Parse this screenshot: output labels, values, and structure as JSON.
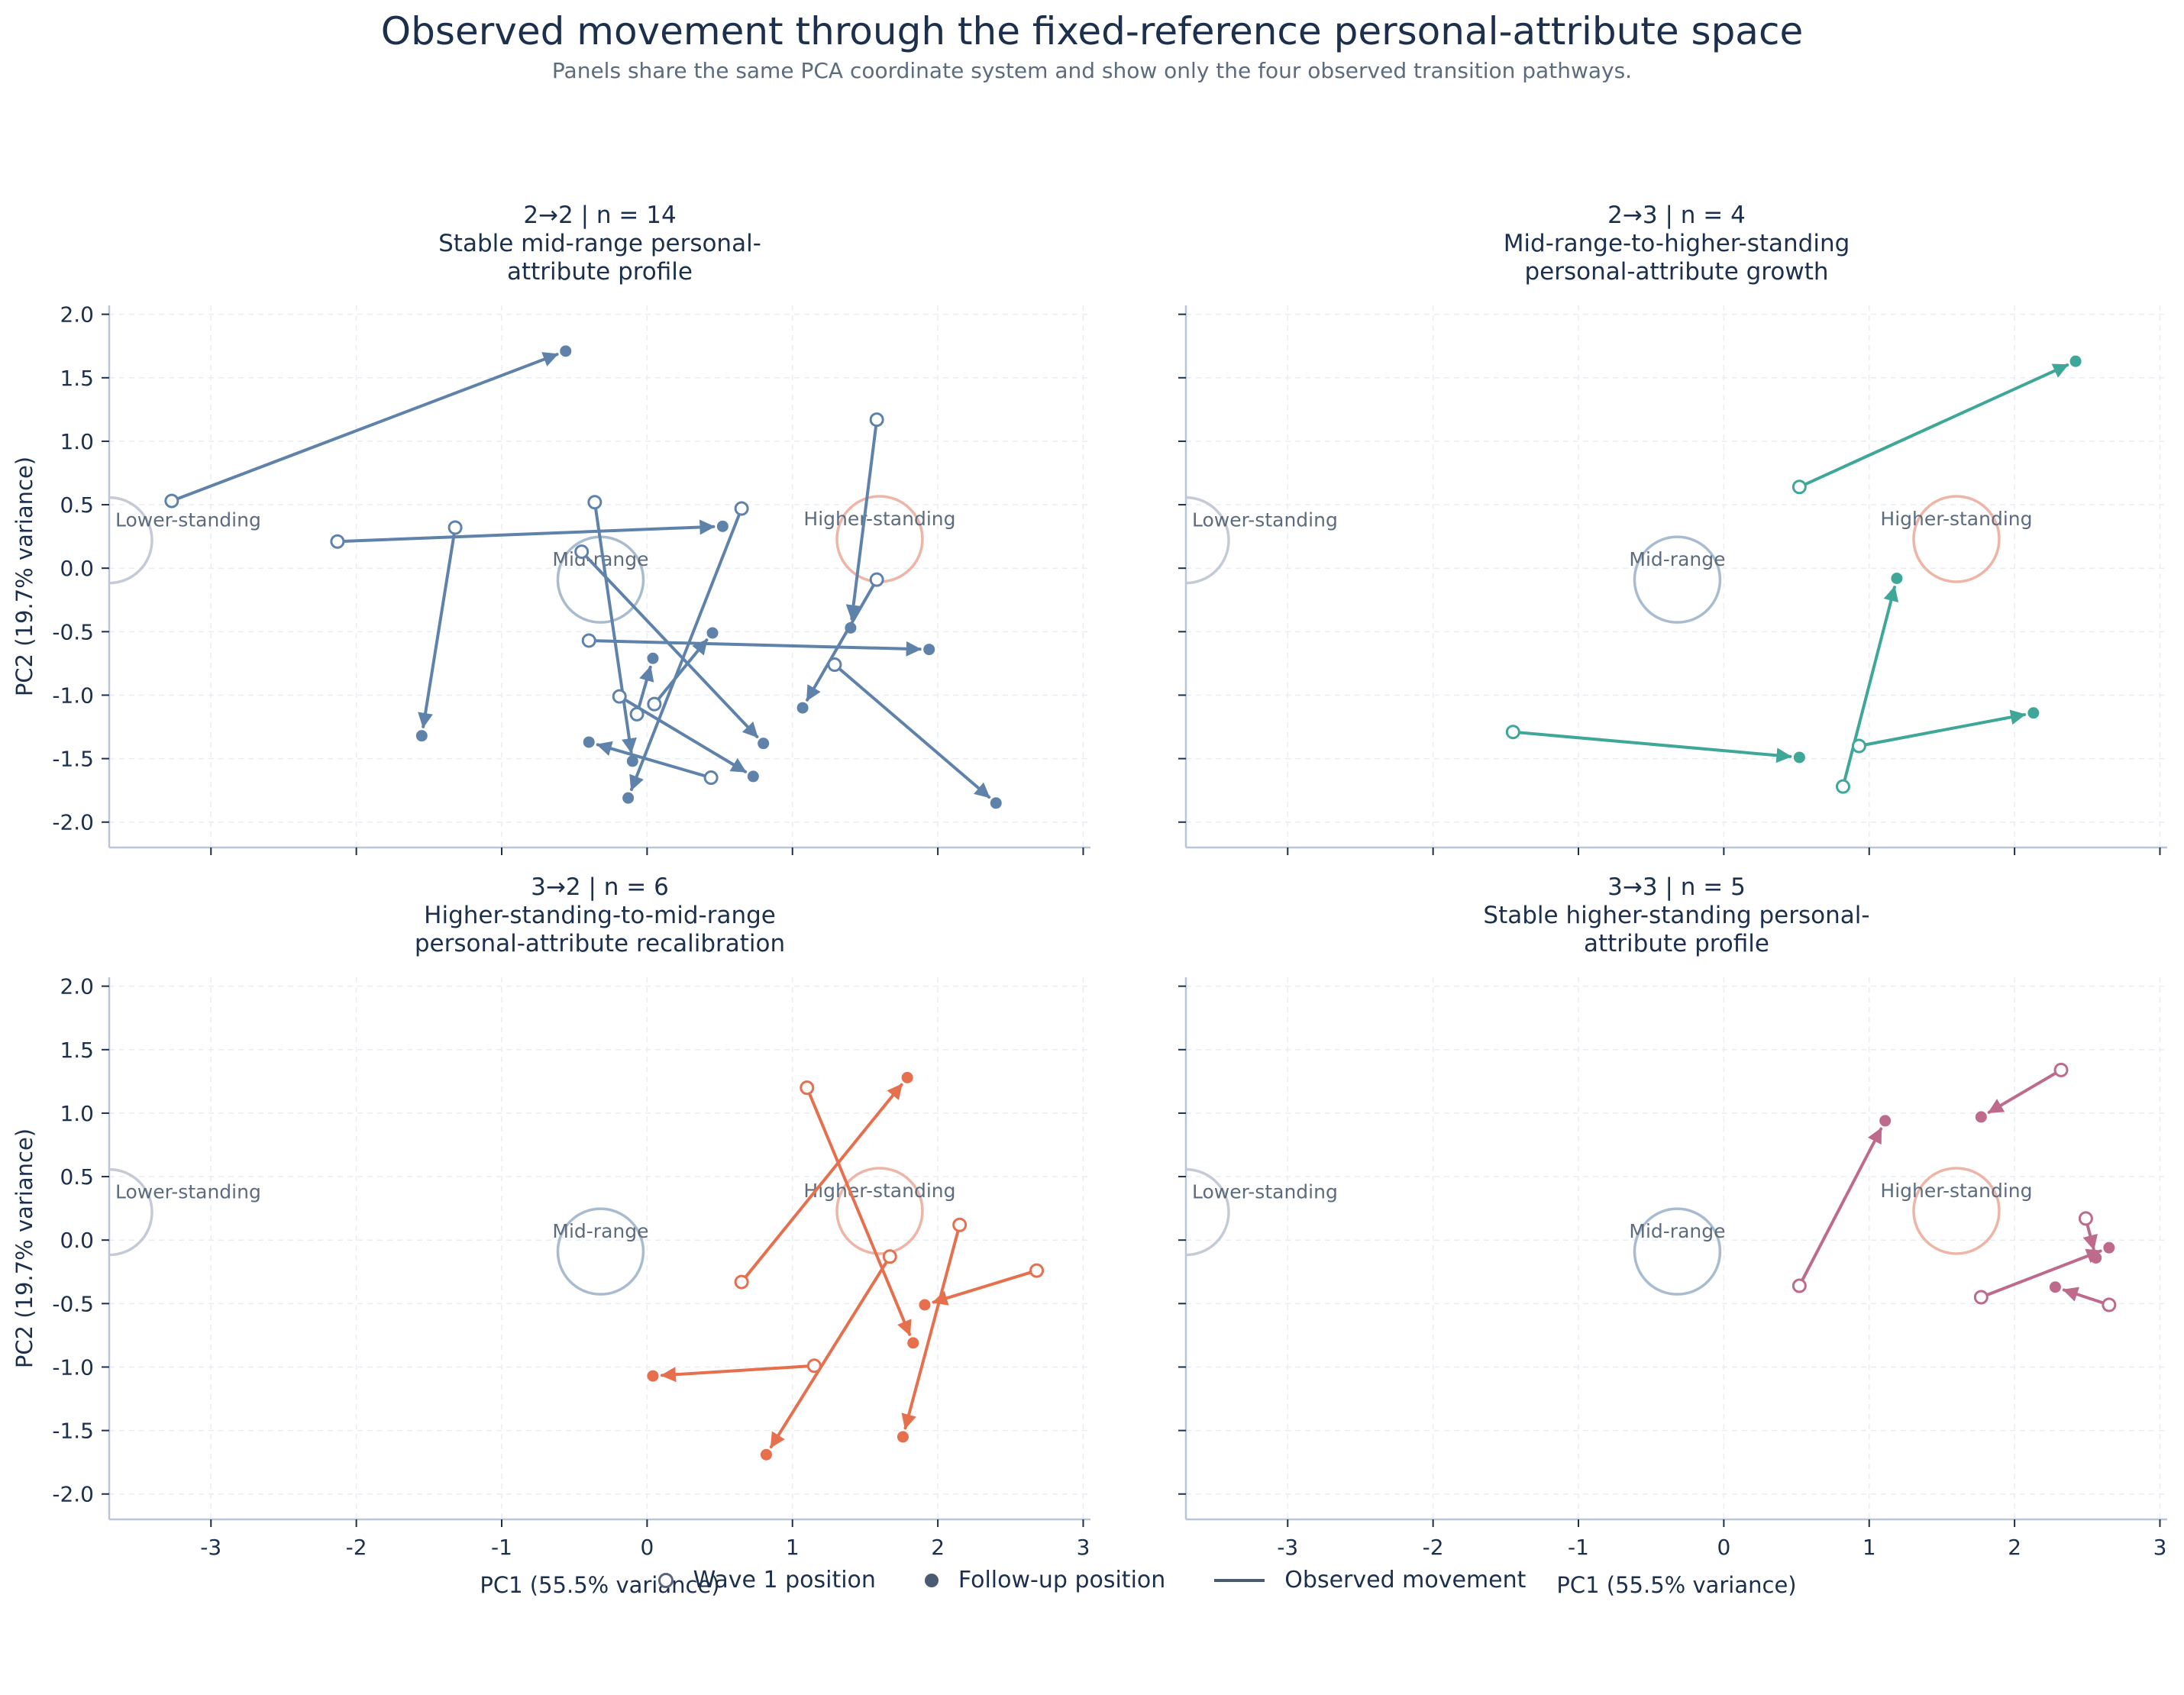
{
  "title": "Observed movement through the fixed-reference personal-attribute space",
  "subtitle": "Panels share the same PCA coordinate system and show only the four observed transition pathways.",
  "legend": {
    "wave1": "Wave 1 position",
    "followup": "Follow-up position",
    "movement": "Observed movement"
  },
  "chart_data": {
    "type": "scatter",
    "xlabel": "PC1 (55.5% variance)",
    "ylabel": "PC2 (19.7% variance)",
    "xlim": [
      -3.7,
      3.05
    ],
    "ylim": [
      -2.2,
      2.07
    ],
    "xticks": [
      -3,
      -2,
      -1,
      0,
      1,
      2,
      3
    ],
    "xtick_labels": [
      "-3",
      "-2",
      "-1",
      "0",
      "1",
      "2",
      "3"
    ],
    "yticks": [
      2.0,
      1.5,
      1.0,
      0.5,
      0.0,
      -0.5,
      -1.0,
      -1.5,
      -2.0
    ],
    "ytick_labels": [
      "2.0",
      "1.5",
      "1.0",
      "0.5",
      "0.0",
      "-0.5",
      "-1.0",
      "-1.5",
      "-2.0"
    ],
    "grid": true,
    "references": [
      {
        "label": "Lower-standing",
        "x": -3.7,
        "y": 0.22,
        "color": "#c3cbd6"
      },
      {
        "label": "Mid-range",
        "x": -0.32,
        "y": -0.09,
        "color": "#a9bccf"
      },
      {
        "label": "Higher-standing",
        "x": 1.6,
        "y": 0.23,
        "color": "#eeb5a6"
      }
    ],
    "panels": [
      {
        "title": "2→2  |  n = 14",
        "subtitle_lines": [
          "Stable mid-range personal-",
          "attribute profile"
        ],
        "color": "#5f82ab",
        "movements": [
          {
            "x0": -3.27,
            "y0": 0.53,
            "x1": -0.56,
            "y1": 1.71
          },
          {
            "x0": -2.13,
            "y0": 0.21,
            "x1": 0.52,
            "y1": 0.33
          },
          {
            "x0": -1.32,
            "y0": 0.32,
            "x1": -1.55,
            "y1": -1.32
          },
          {
            "x0": -0.36,
            "y0": 0.52,
            "x1": -0.1,
            "y1": -1.52
          },
          {
            "x0": -0.45,
            "y0": 0.13,
            "x1": 0.8,
            "y1": -1.38
          },
          {
            "x0": 0.65,
            "y0": 0.47,
            "x1": -0.13,
            "y1": -1.81
          },
          {
            "x0": -0.4,
            "y0": -0.57,
            "x1": 1.94,
            "y1": -0.64
          },
          {
            "x0": 1.58,
            "y0": 1.17,
            "x1": 1.4,
            "y1": -0.47
          },
          {
            "x0": 1.58,
            "y0": -0.09,
            "x1": 1.07,
            "y1": -1.1
          },
          {
            "x0": 1.29,
            "y0": -0.76,
            "x1": 2.4,
            "y1": -1.85
          },
          {
            "x0": -0.19,
            "y0": -1.01,
            "x1": 0.73,
            "y1": -1.64
          },
          {
            "x0": 0.05,
            "y0": -1.07,
            "x1": 0.45,
            "y1": -0.51
          },
          {
            "x0": -0.07,
            "y0": -1.15,
            "x1": 0.04,
            "y1": -0.71
          },
          {
            "x0": 0.44,
            "y0": -1.65,
            "x1": -0.4,
            "y1": -1.37
          }
        ]
      },
      {
        "title": "2→3  |  n = 4",
        "subtitle_lines": [
          "Mid-range-to-higher-standing",
          "personal-attribute growth"
        ],
        "color": "#3fa797",
        "movements": [
          {
            "x0": 0.52,
            "y0": 0.64,
            "x1": 2.42,
            "y1": 1.63
          },
          {
            "x0": -1.45,
            "y0": -1.29,
            "x1": 0.52,
            "y1": -1.49
          },
          {
            "x0": 0.82,
            "y0": -1.72,
            "x1": 1.19,
            "y1": -0.08
          },
          {
            "x0": 0.93,
            "y0": -1.4,
            "x1": 2.13,
            "y1": -1.14
          }
        ]
      },
      {
        "title": "3→2  |  n = 6",
        "subtitle_lines": [
          "Higher-standing-to-mid-range",
          "personal-attribute recalibration"
        ],
        "color": "#e6704e",
        "movements": [
          {
            "x0": 0.65,
            "y0": -0.33,
            "x1": 1.79,
            "y1": 1.28
          },
          {
            "x0": 1.1,
            "y0": 1.2,
            "x1": 1.83,
            "y1": -0.81
          },
          {
            "x0": 1.67,
            "y0": -0.13,
            "x1": 0.82,
            "y1": -1.69
          },
          {
            "x0": 2.15,
            "y0": 0.12,
            "x1": 1.76,
            "y1": -1.55
          },
          {
            "x0": 2.68,
            "y0": -0.24,
            "x1": 1.91,
            "y1": -0.51
          },
          {
            "x0": 1.15,
            "y0": -0.99,
            "x1": 0.04,
            "y1": -1.07
          }
        ]
      },
      {
        "title": "3→3  |  n = 5",
        "subtitle_lines": [
          "Stable higher-standing personal-",
          "attribute profile"
        ],
        "color": "#bd6a8c",
        "movements": [
          {
            "x0": 0.52,
            "y0": -0.36,
            "x1": 1.11,
            "y1": 0.94
          },
          {
            "x0": 2.32,
            "y0": 1.34,
            "x1": 1.77,
            "y1": 0.97
          },
          {
            "x0": 2.49,
            "y0": 0.17,
            "x1": 2.56,
            "y1": -0.14
          },
          {
            "x0": 1.77,
            "y0": -0.45,
            "x1": 2.65,
            "y1": -0.06
          },
          {
            "x0": 2.65,
            "y0": -0.51,
            "x1": 2.28,
            "y1": -0.37
          }
        ]
      }
    ]
  }
}
